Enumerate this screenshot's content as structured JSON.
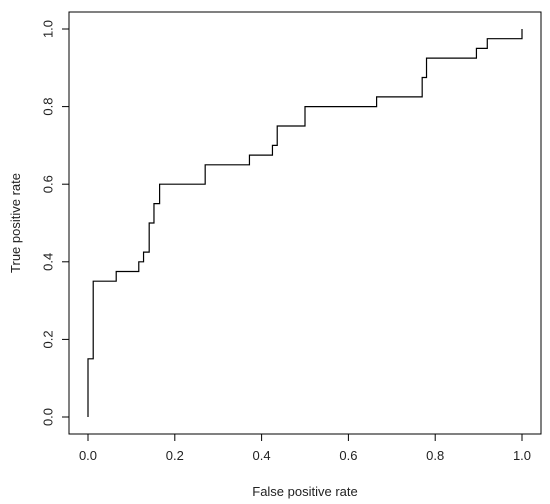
{
  "chart_data": {
    "type": "line",
    "title": "",
    "xlabel": "False positive rate",
    "ylabel": "True positive rate",
    "xlim": [
      0,
      1
    ],
    "ylim": [
      0,
      1
    ],
    "xticks": [
      "0.0",
      "0.2",
      "0.4",
      "0.6",
      "0.8",
      "1.0"
    ],
    "yticks": [
      "0.0",
      "0.2",
      "0.4",
      "0.6",
      "0.8",
      "1.0"
    ],
    "grid": false,
    "legend": "none",
    "line_color": "#000000",
    "series": [
      {
        "x": [
          0,
          0,
          0.012,
          0.012,
          0.065,
          0.065,
          0.117,
          0.117,
          0.128,
          0.128,
          0.141,
          0.141,
          0.152,
          0.152,
          0.165,
          0.165,
          0.27,
          0.27,
          0.372,
          0.372,
          0.425,
          0.425,
          0.436,
          0.436,
          0.5,
          0.5,
          0.665,
          0.665,
          0.77,
          0.77,
          0.78,
          0.78,
          0.895,
          0.895,
          0.92,
          0.92,
          1.0,
          1.0
        ],
        "y": [
          0,
          0.15,
          0.15,
          0.35,
          0.35,
          0.375,
          0.375,
          0.4,
          0.4,
          0.425,
          0.425,
          0.5,
          0.5,
          0.55,
          0.55,
          0.6,
          0.6,
          0.65,
          0.65,
          0.675,
          0.675,
          0.7,
          0.7,
          0.75,
          0.75,
          0.8,
          0.8,
          0.825,
          0.825,
          0.875,
          0.875,
          0.925,
          0.925,
          0.95,
          0.95,
          0.975,
          0.975,
          1.0
        ]
      }
    ]
  }
}
